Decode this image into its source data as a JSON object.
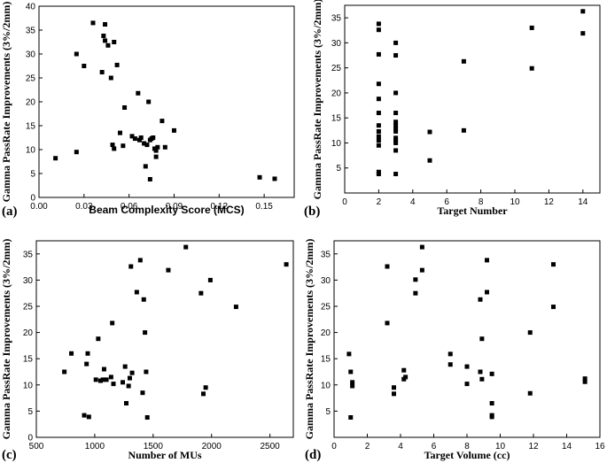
{
  "colors": {
    "marker": "#000000",
    "axis": "#000000",
    "background": "#ffffff"
  },
  "chart_data": [
    {
      "type": "scatter",
      "panel_label": "(a)",
      "xlabel": "Beam Complexity Score (MCS)",
      "ylabel": "Gamma PassRate Improvements (3%/2mm)",
      "xlim": [
        0,
        0.17
      ],
      "ylim": [
        0,
        40
      ],
      "xticks": [
        0.0,
        0.03,
        0.06,
        0.09,
        0.12,
        0.15
      ],
      "xtick_labels": [
        "0.00",
        "0.03",
        "0.06",
        "0.09",
        "0.12",
        "0.15"
      ],
      "yticks": [
        0,
        5,
        10,
        15,
        20,
        25,
        30,
        35,
        40
      ],
      "ytick_labels": [
        "0",
        "5",
        "10",
        "15",
        "20",
        "25",
        "30",
        "35",
        "40"
      ],
      "x": [
        0.011,
        0.025,
        0.025,
        0.03,
        0.036,
        0.042,
        0.043,
        0.044,
        0.044,
        0.046,
        0.048,
        0.049,
        0.05,
        0.05,
        0.052,
        0.054,
        0.056,
        0.057,
        0.062,
        0.064,
        0.066,
        0.067,
        0.068,
        0.07,
        0.071,
        0.072,
        0.073,
        0.074,
        0.074,
        0.075,
        0.076,
        0.077,
        0.078,
        0.078,
        0.079,
        0.082,
        0.084,
        0.09,
        0.147,
        0.157
      ],
      "y": [
        8.2,
        30.0,
        9.5,
        27.5,
        36.5,
        26.2,
        33.8,
        36.2,
        32.8,
        31.8,
        25.0,
        11.0,
        10.2,
        32.5,
        27.7,
        13.5,
        10.8,
        18.8,
        12.8,
        12.3,
        21.8,
        12.0,
        12.5,
        11.3,
        6.5,
        11.0,
        20.0,
        3.8,
        12.0,
        12.3,
        12.5,
        10.2,
        8.5,
        9.8,
        10.5,
        16.0,
        10.5,
        14.0,
        4.2,
        3.9
      ]
    },
    {
      "type": "scatter",
      "panel_label": "(b)",
      "xlabel": "Target Number",
      "ylabel": "Gamma PassRate Improvements (3%/2mm)",
      "xlim": [
        0,
        15
      ],
      "ylim": [
        0,
        37.5
      ],
      "xticks": [
        0,
        2,
        4,
        6,
        8,
        10,
        12,
        14
      ],
      "xtick_labels": [
        "0",
        "2",
        "4",
        "6",
        "8",
        "10",
        "12",
        "14"
      ],
      "yticks": [
        5,
        10,
        15,
        20,
        25,
        30,
        35
      ],
      "ytick_labels": [
        "5",
        "10",
        "15",
        "20",
        "25",
        "30",
        "35"
      ],
      "x": [
        2,
        2,
        2,
        2,
        2,
        2,
        2,
        2,
        2,
        2,
        2,
        2,
        2,
        3,
        3,
        3,
        3,
        3,
        3,
        3,
        3,
        3,
        3,
        3,
        3,
        3,
        5,
        5,
        7,
        7,
        11,
        11,
        14,
        14
      ],
      "y": [
        33.8,
        32.6,
        27.7,
        21.8,
        18.8,
        16.0,
        13.5,
        12.3,
        11.3,
        10.5,
        9.5,
        4.2,
        3.8,
        30.0,
        27.5,
        20.0,
        16.0,
        14.2,
        13.5,
        12.8,
        12.3,
        11.0,
        10.5,
        10.0,
        8.5,
        3.8,
        12.2,
        6.5,
        26.3,
        12.5,
        33.0,
        24.9,
        36.3,
        31.9
      ]
    },
    {
      "type": "scatter",
      "panel_label": "(c)",
      "xlabel": "Number of MUs",
      "ylabel": "Gamma PassRate Improvements (3%/2mm)",
      "xlim": [
        500,
        2700
      ],
      "ylim": [
        0,
        37.5
      ],
      "xticks": [
        500,
        1000,
        1500,
        2000,
        2500
      ],
      "xtick_labels": [
        "500",
        "1000",
        "1500",
        "2000",
        "2500"
      ],
      "yticks": [
        0,
        5,
        10,
        15,
        20,
        25,
        30,
        35
      ],
      "ytick_labels": [
        "0",
        "5",
        "10",
        "15",
        "20",
        "25",
        "30",
        "35"
      ],
      "x": [
        740,
        800,
        910,
        930,
        940,
        950,
        1010,
        1030,
        1050,
        1070,
        1080,
        1100,
        1140,
        1150,
        1160,
        1240,
        1260,
        1270,
        1290,
        1300,
        1310,
        1320,
        1360,
        1390,
        1410,
        1420,
        1430,
        1440,
        1450,
        1630,
        1780,
        1910,
        1930,
        1950,
        1990,
        2210,
        2640
      ],
      "y": [
        12.5,
        16.0,
        4.2,
        14.0,
        16.0,
        3.9,
        11.0,
        18.8,
        10.8,
        11.0,
        13.0,
        11.0,
        11.5,
        21.8,
        10.2,
        10.5,
        13.5,
        6.5,
        9.8,
        11.3,
        32.6,
        12.3,
        27.7,
        33.8,
        8.5,
        26.3,
        20.0,
        12.5,
        3.8,
        31.9,
        36.3,
        27.5,
        8.3,
        9.5,
        30.0,
        24.9,
        33.0
      ]
    },
    {
      "type": "scatter",
      "panel_label": "(d)",
      "xlabel": "Target Volume (cc)",
      "ylabel": "Gamma PassRate Improvements (3%/2mm)",
      "xlim": [
        0,
        16
      ],
      "ylim": [
        0,
        37.5
      ],
      "xticks": [
        0,
        2,
        4,
        6,
        8,
        10,
        12,
        14,
        16
      ],
      "xtick_labels": [
        "0",
        "2",
        "4",
        "6",
        "8",
        "10",
        "12",
        "14",
        "16"
      ],
      "yticks": [
        5,
        10,
        15,
        20,
        25,
        30,
        35
      ],
      "ytick_labels": [
        "5",
        "10",
        "15",
        "20",
        "25",
        "30",
        "35"
      ],
      "x": [
        0.9,
        1.0,
        1.0,
        1.1,
        1.1,
        3.2,
        3.2,
        3.6,
        3.6,
        4.2,
        4.2,
        4.3,
        4.9,
        4.9,
        5.3,
        5.3,
        7.0,
        7.0,
        8.0,
        8.0,
        8.8,
        8.8,
        8.9,
        8.9,
        9.2,
        9.2,
        9.5,
        9.5,
        9.5,
        9.5,
        11.8,
        11.8,
        13.2,
        13.2,
        15.1,
        15.1
      ],
      "y": [
        15.9,
        12.5,
        3.8,
        10.5,
        9.8,
        32.6,
        21.8,
        8.3,
        9.5,
        11.1,
        12.8,
        11.5,
        27.5,
        30.1,
        36.3,
        31.9,
        13.9,
        15.9,
        10.2,
        13.5,
        26.3,
        12.5,
        11.1,
        18.8,
        33.8,
        27.7,
        12.1,
        6.5,
        4.2,
        3.9,
        20.0,
        8.4,
        24.9,
        33.0,
        11.2,
        10.6
      ]
    }
  ]
}
